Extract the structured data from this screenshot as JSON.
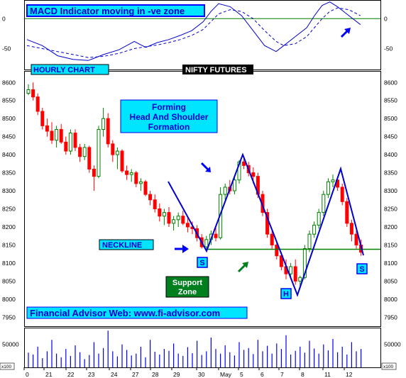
{
  "chart_data": [
    {
      "type": "line",
      "panel": "macd",
      "title": "MACD Indicator moving in -ve zone",
      "y_ticks": [
        0,
        -50
      ],
      "ylim": [
        -85,
        30
      ],
      "zero_line_color": "#008000",
      "series": [
        {
          "style": "solid",
          "color": "#0000cc",
          "points": [
            [
              0,
              -35
            ],
            [
              4,
              -45
            ],
            [
              8,
              -62
            ],
            [
              12,
              -68
            ],
            [
              16,
              -70
            ],
            [
              20,
              -60
            ],
            [
              24,
              -52
            ],
            [
              28,
              -38
            ],
            [
              31,
              -48
            ],
            [
              34,
              -40
            ],
            [
              37,
              -35
            ],
            [
              40,
              -28
            ],
            [
              43,
              -20
            ],
            [
              46,
              -5
            ],
            [
              48,
              12
            ],
            [
              50,
              25
            ],
            [
              53,
              20
            ],
            [
              56,
              5
            ],
            [
              59,
              -20
            ],
            [
              62,
              -45
            ],
            [
              65,
              -55
            ],
            [
              67,
              -45
            ],
            [
              70,
              -30
            ],
            [
              73,
              -15
            ],
            [
              75,
              5
            ],
            [
              77,
              22
            ],
            [
              79,
              28
            ],
            [
              81,
              20
            ],
            [
              84,
              5
            ],
            [
              87,
              -10
            ]
          ]
        },
        {
          "style": "dashed",
          "color": "#0000cc",
          "points": [
            [
              0,
              -45
            ],
            [
              4,
              -50
            ],
            [
              8,
              -55
            ],
            [
              12,
              -60
            ],
            [
              16,
              -65
            ],
            [
              20,
              -63
            ],
            [
              24,
              -58
            ],
            [
              28,
              -50
            ],
            [
              31,
              -47
            ],
            [
              34,
              -44
            ],
            [
              37,
              -40
            ],
            [
              40,
              -35
            ],
            [
              43,
              -28
            ],
            [
              46,
              -18
            ],
            [
              48,
              -5
            ],
            [
              50,
              8
            ],
            [
              53,
              15
            ],
            [
              56,
              12
            ],
            [
              59,
              0
            ],
            [
              62,
              -20
            ],
            [
              65,
              -38
            ],
            [
              67,
              -45
            ],
            [
              70,
              -42
            ],
            [
              73,
              -30
            ],
            [
              75,
              -15
            ],
            [
              77,
              0
            ],
            [
              79,
              12
            ],
            [
              81,
              18
            ],
            [
              84,
              15
            ],
            [
              87,
              5
            ]
          ]
        }
      ]
    },
    {
      "type": "candlestick",
      "panel": "price",
      "labels": {
        "hourly": "HOURLY CHART",
        "instrument": "NIFTY FUTURES",
        "pattern_line1": "Forming",
        "pattern_line2": "Head And Shoulder",
        "pattern_line3": "Formation",
        "neckline": "NECKLINE",
        "support_line1": "Support",
        "support_line2": "Zone",
        "shoulder_left": "S",
        "head": "H",
        "shoulder_right": "S",
        "website": "Financial Advisor Web: www.fi-advisor.com"
      },
      "y_ticks": [
        8600,
        8550,
        8500,
        8450,
        8400,
        8350,
        8300,
        8250,
        8200,
        8150,
        8100,
        8050,
        8000,
        7950
      ],
      "ylim": [
        7925,
        8630
      ],
      "neckline_level": 8138,
      "up_color": "#008000",
      "down_color": "#ff0000",
      "candles": [
        [
          8570,
          8595,
          8565,
          8580
        ],
        [
          8580,
          8600,
          8550,
          8560
        ],
        [
          8560,
          8570,
          8510,
          8520
        ],
        [
          8520,
          8530,
          8470,
          8480
        ],
        [
          8480,
          8500,
          8450,
          8465
        ],
        [
          8465,
          8490,
          8430,
          8440
        ],
        [
          8440,
          8480,
          8420,
          8470
        ],
        [
          8470,
          8485,
          8430,
          8435
        ],
        [
          8435,
          8450,
          8400,
          8410
        ],
        [
          8410,
          8470,
          8400,
          8460
        ],
        [
          8460,
          8470,
          8410,
          8420
        ],
        [
          8420,
          8430,
          8380,
          8395
        ],
        [
          8395,
          8430,
          8385,
          8420
        ],
        [
          8420,
          8425,
          8350,
          8360
        ],
        [
          8360,
          8370,
          8300,
          8340
        ],
        [
          8340,
          8480,
          8335,
          8470
        ],
        [
          8470,
          8530,
          8450,
          8500
        ],
        [
          8500,
          8515,
          8420,
          8430
        ],
        [
          8430,
          8440,
          8380,
          8400
        ],
        [
          8400,
          8420,
          8360,
          8410
        ],
        [
          8410,
          8415,
          8350,
          8355
        ],
        [
          8355,
          8370,
          8330,
          8345
        ],
        [
          8345,
          8360,
          8325,
          8350
        ],
        [
          8350,
          8355,
          8310,
          8320
        ],
        [
          8320,
          8335,
          8300,
          8325
        ],
        [
          8325,
          8330,
          8285,
          8290
        ],
        [
          8290,
          8300,
          8260,
          8275
        ],
        [
          8275,
          8290,
          8240,
          8250
        ],
        [
          8250,
          8265,
          8215,
          8230
        ],
        [
          8230,
          8250,
          8205,
          8240
        ],
        [
          8240,
          8255,
          8200,
          8210
        ],
        [
          8210,
          8230,
          8190,
          8220
        ],
        [
          8220,
          8240,
          8200,
          8230
        ],
        [
          8230,
          8245,
          8205,
          8210
        ],
        [
          8210,
          8225,
          8185,
          8200
        ],
        [
          8200,
          8215,
          8180,
          8195
        ],
        [
          8195,
          8205,
          8160,
          8170
        ],
        [
          8170,
          8180,
          8140,
          8145
        ],
        [
          8145,
          8175,
          8135,
          8165
        ],
        [
          8165,
          8190,
          8150,
          8180
        ],
        [
          8180,
          8200,
          8160,
          8170
        ],
        [
          8170,
          8310,
          8165,
          8290
        ],
        [
          8290,
          8320,
          8275,
          8310
        ],
        [
          8310,
          8330,
          8290,
          8300
        ],
        [
          8300,
          8340,
          8290,
          8330
        ],
        [
          8330,
          8385,
          8320,
          8380
        ],
        [
          8380,
          8395,
          8360,
          8370
        ],
        [
          8370,
          8380,
          8340,
          8350
        ],
        [
          8350,
          8365,
          8320,
          8340
        ],
        [
          8340,
          8350,
          8280,
          8290
        ],
        [
          8290,
          8300,
          8230,
          8240
        ],
        [
          8240,
          8250,
          8170,
          8180
        ],
        [
          8180,
          8190,
          8140,
          8150
        ],
        [
          8150,
          8160,
          8110,
          8120
        ],
        [
          8120,
          8130,
          8080,
          8090
        ],
        [
          8090,
          8110,
          8055,
          8070
        ],
        [
          8070,
          8100,
          8060,
          8090
        ],
        [
          8090,
          8110,
          8040,
          8050
        ],
        [
          8050,
          8065,
          8030,
          8060
        ],
        [
          8060,
          8150,
          8055,
          8140
        ],
        [
          8140,
          8190,
          8130,
          8180
        ],
        [
          8180,
          8215,
          8170,
          8205
        ],
        [
          8205,
          8250,
          8195,
          8240
        ],
        [
          8240,
          8300,
          8230,
          8290
        ],
        [
          8290,
          8335,
          8280,
          8325
        ],
        [
          8325,
          8345,
          8310,
          8330
        ],
        [
          8330,
          8340,
          8300,
          8310
        ],
        [
          8310,
          8320,
          8260,
          8270
        ],
        [
          8270,
          8280,
          8200,
          8210
        ],
        [
          8210,
          8220,
          8160,
          8180
        ],
        [
          8180,
          8190,
          8140,
          8150
        ],
        [
          8150,
          8165,
          8120,
          8130
        ]
      ]
    },
    {
      "type": "bar",
      "panel": "volume",
      "y_ticks": [
        50000,
        0
      ],
      "ylim": [
        0,
        85000
      ],
      "bar_color": "#0000ff",
      "values": [
        32000,
        28000,
        45000,
        20000,
        35000,
        60000,
        30000,
        22000,
        40000,
        25000,
        48000,
        33000,
        18000,
        27000,
        55000,
        30000,
        42000,
        80000,
        35000,
        24000,
        50000,
        38000,
        26000,
        30000,
        45000,
        22000,
        60000,
        34000,
        28000,
        40000,
        36000,
        52000,
        30000,
        25000,
        44000,
        31000,
        58000,
        27000,
        35000,
        65000,
        40000,
        30000,
        48000,
        33000,
        26000,
        55000,
        38000,
        42000,
        29000,
        60000,
        35000,
        47000,
        30000,
        52000,
        40000,
        70000,
        28000,
        36000,
        45000,
        32000,
        58000,
        41000,
        30000,
        50000,
        37000,
        62000,
        33000,
        45000,
        28000,
        55000,
        35000,
        40000
      ]
    }
  ],
  "x_axis": {
    "labels": [
      "0",
      "21",
      "22",
      "23",
      "24",
      "27",
      "28",
      "29",
      "30",
      "May",
      "5",
      "6",
      "7",
      "8",
      "11",
      "12"
    ]
  },
  "corner_labels": {
    "left": "x100",
    "right": "x100"
  }
}
